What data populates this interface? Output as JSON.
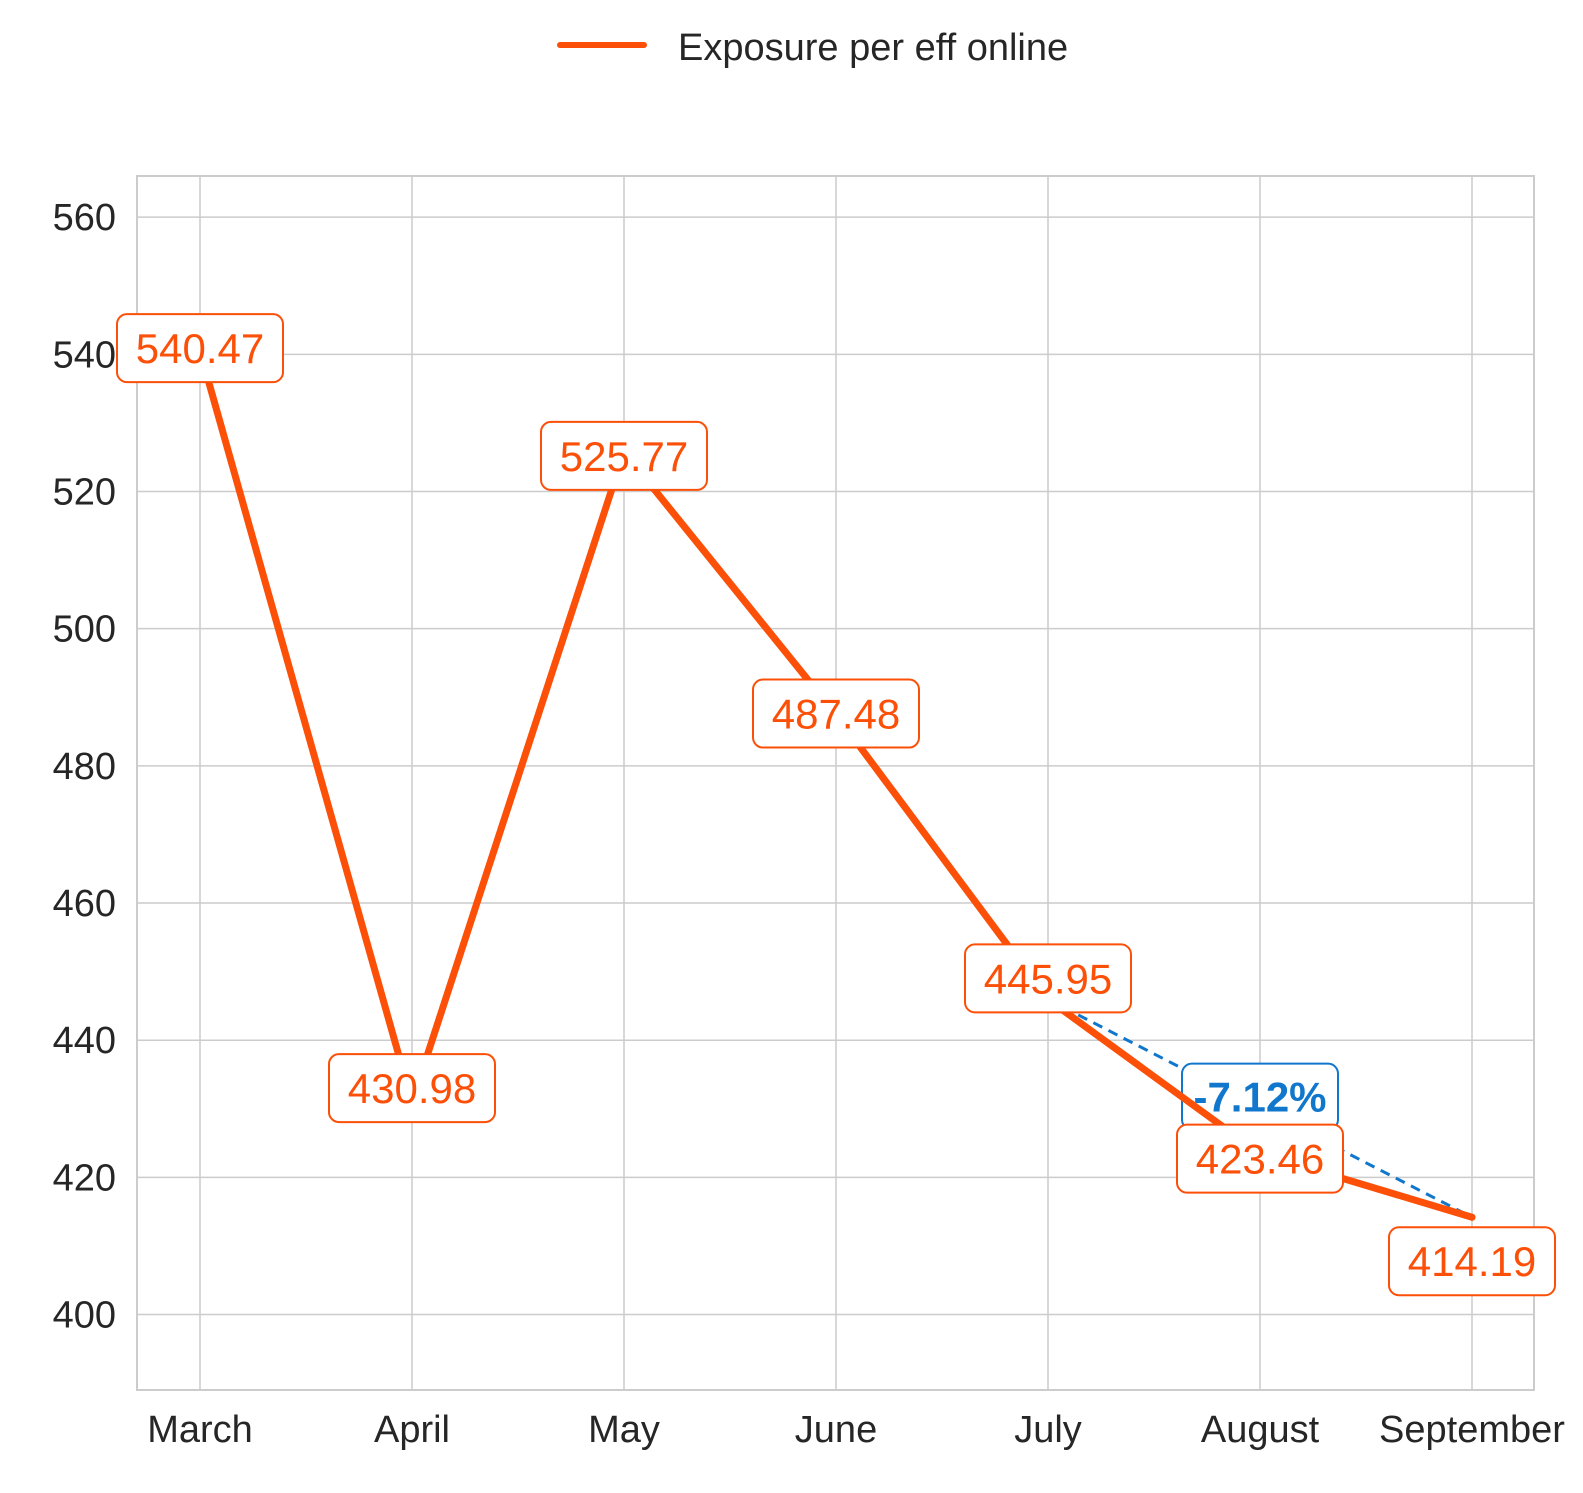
{
  "colors": {
    "series": "#fc4f08",
    "annotation": "#1177cc",
    "grid": "#cccccc",
    "text": "#262626"
  },
  "legend": {
    "placement": "top-center",
    "entries": [
      {
        "label": "Exposure per eff online",
        "color": "#fc4f08"
      }
    ]
  },
  "chart_data": {
    "type": "line",
    "title": "",
    "xlabel": "",
    "ylabel": "",
    "grid": true,
    "categories": [
      "March",
      "April",
      "May",
      "June",
      "July",
      "August",
      "September"
    ],
    "series": [
      {
        "name": "Exposure per eff online",
        "values": [
          540.47,
          430.98,
          525.77,
          487.48,
          445.95,
          423.46,
          414.19
        ],
        "value_labels": [
          "540.47",
          "430.98",
          "525.77",
          "487.48",
          "445.95",
          "423.46",
          "414.19"
        ]
      }
    ],
    "ylim": [
      389,
      566
    ],
    "yticks": [
      400,
      420,
      440,
      460,
      480,
      500,
      520,
      540,
      560
    ],
    "annotation": {
      "label": "-7.12%",
      "from_category": "July",
      "to_category": "September",
      "at_category": "August"
    }
  }
}
